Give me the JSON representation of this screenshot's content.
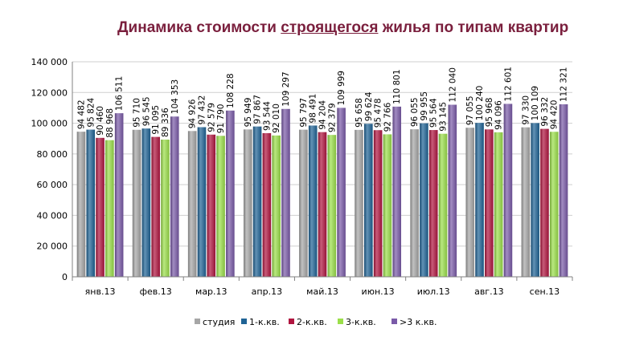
{
  "title": {
    "before": "Динамика стоимости ",
    "underlined": "строящегося",
    "after": " жилья по типам квартир"
  },
  "chart_data": {
    "type": "bar",
    "categories": [
      "янв.13",
      "фев.13",
      "мар.13",
      "апр.13",
      "май.13",
      "июн.13",
      "июл.13",
      "авг.13",
      "сен.13"
    ],
    "series": [
      {
        "name": "студия",
        "color": "#a6a6a6",
        "values": [
          94482,
          95710,
          94926,
          95949,
          95797,
          95658,
          96055,
          97055,
          97330
        ]
      },
      {
        "name": "1-к.кв.",
        "color": "#1f6395",
        "values": [
          95824,
          96545,
          97432,
          97867,
          98491,
          99624,
          99955,
          100240,
          100109
        ]
      },
      {
        "name": "2-к.кв.",
        "color": "#b0153f",
        "values": [
          90460,
          91095,
          92579,
          93544,
          94204,
          95478,
          95564,
          95968,
          96332
        ]
      },
      {
        "name": "3-к.кв.",
        "color": "#9bdf4a",
        "values": [
          88968,
          89336,
          91790,
          92010,
          92379,
          92766,
          93145,
          94096,
          94420
        ]
      },
      {
        "name": ">3 к.кв.",
        "color": "#7a5aa8",
        "values": [
          106511,
          104353,
          108228,
          109297,
          109999,
          110801,
          112040,
          112601,
          112321
        ]
      }
    ],
    "value_labels": [
      [
        "94 482",
        "95 710",
        "94 926",
        "95 949",
        "95 797",
        "95 658",
        "96 055",
        "97 055",
        "97 330"
      ],
      [
        "95 824",
        "96 545",
        "97 432",
        "97 867",
        "98 491",
        "99 624",
        "99 955",
        "100 240",
        "100 109"
      ],
      [
        "90 460",
        "91 095",
        "92 579",
        "93 544",
        "94 204",
        "95 478",
        "95 564",
        "95 968",
        "96 332"
      ],
      [
        "88 968",
        "89 336",
        "91 790",
        "92 010",
        "92 379",
        "92 766",
        "93 145",
        "94 096",
        "94 420"
      ],
      [
        "106 511",
        "104 353",
        "108 228",
        "109 297",
        "109 999",
        "110 801",
        "112 040",
        "112 601",
        "112 321"
      ]
    ],
    "yticks": [
      0,
      20000,
      40000,
      60000,
      80000,
      100000,
      120000,
      140000
    ],
    "ytick_labels": [
      "0",
      "20 000",
      "40 000",
      "60 000",
      "80 000",
      "100 000",
      "120 000",
      "140 000"
    ],
    "ylim": [
      0,
      140000
    ],
    "grid": true,
    "legend": "bottom"
  }
}
